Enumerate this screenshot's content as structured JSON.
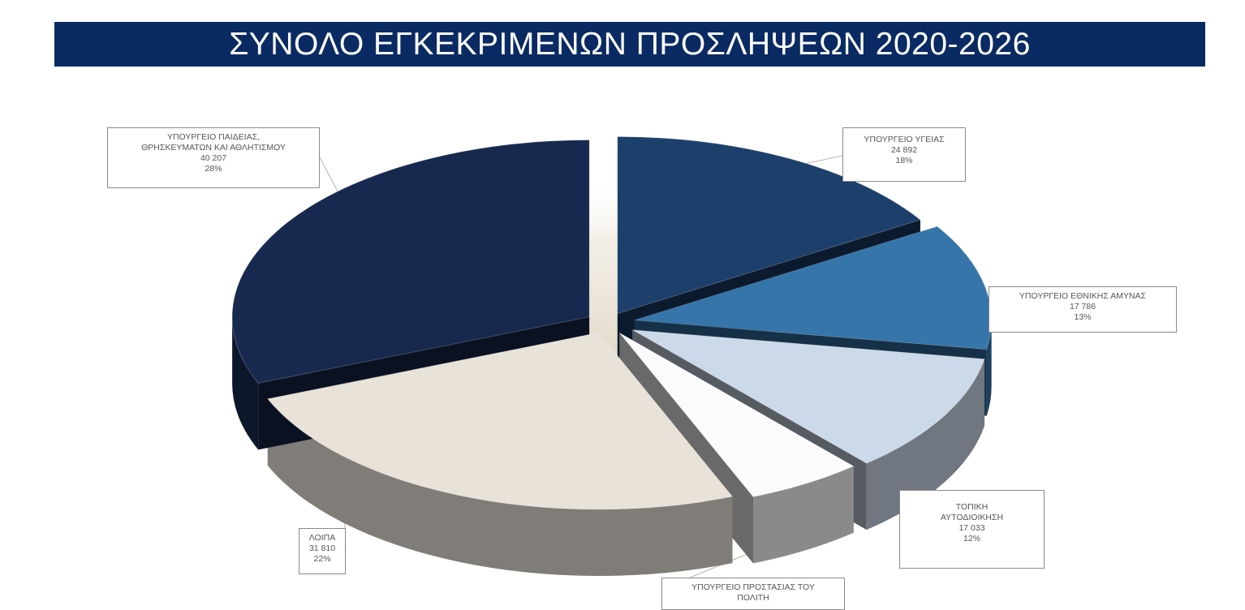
{
  "title": "ΣΥΝΟΛΟ ΕΓΚΕΚΡΙΜΕΝΩΝ ΠΡΟΣΛΗΨΕΩΝ 2020-2026",
  "chart_data": {
    "type": "pie",
    "style": "3d-exploded",
    "title": "ΣΥΝΟΛΟ ΕΓΚΕΚΡΙΜΕΝΩΝ ΠΡΟΣΛΗΨΕΩΝ 2020-2026",
    "slices": [
      {
        "key": "ygeias",
        "label_lines": [
          "ΥΠΟΥΡΓΕΙΟ ΥΓΕΙΑΣ"
        ],
        "value": 24892,
        "value_text": "24 892",
        "percent": 18,
        "percent_text": "18%",
        "color": "#1d3f6b"
      },
      {
        "key": "amynas",
        "label_lines": [
          "ΥΠΟΥΡΓΕΙΟ ΕΘΝΙΚΗΣ ΑΜΥΝΑΣ"
        ],
        "value": 17786,
        "value_text": "17 786",
        "percent": 13,
        "percent_text": "13%",
        "color": "#3575aa"
      },
      {
        "key": "topiki",
        "label_lines": [
          "ΤΟΠΙΚΗ",
          "ΑΥΤΟΔΙΟΙΚΗΣΗ"
        ],
        "value": 17033,
        "value_text": "17 033",
        "percent": 12,
        "percent_text": "12%",
        "color": "#ccd9e9"
      },
      {
        "key": "prostasias",
        "label_lines": [
          "ΥΠΟΥΡΓΕΙΟ ΠΡΟΣΤΑΣΙΑΣ ΤΟΥ",
          "ΠΟΛΙΤΗ"
        ],
        "value": null,
        "value_text": "",
        "percent": null,
        "percent_text": "",
        "color": "#fbfbfc"
      },
      {
        "key": "loipa",
        "label_lines": [
          "ΛΟΙΠΑ"
        ],
        "value": 31810,
        "value_text": "31 810",
        "percent": 22,
        "percent_text": "22%",
        "color": "#e8e2d8"
      },
      {
        "key": "paideias",
        "label_lines": [
          "ΥΠΟΥΡΓΕΙΟ ΠΑΙΔΕΙΑΣ,",
          "ΘΡΗΣΚΕΥΜΑΤΩΝ ΚΑΙ ΑΘΛΗΤΙΣΜΟΥ"
        ],
        "value": 40207,
        "value_text": "40 207",
        "percent": 28,
        "percent_text": "28%",
        "color": "#17294e"
      }
    ],
    "legend": "none",
    "data_labels": "callout-boxes"
  }
}
